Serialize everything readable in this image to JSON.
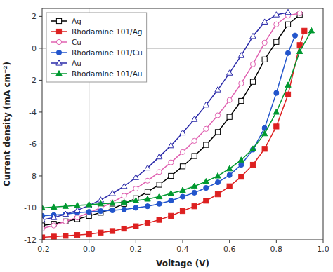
{
  "chart_data": {
    "type": "line",
    "xlabel": "Voltage (V)",
    "ylabel": "Current density (mA cm⁻²)",
    "xlim": [
      -0.2,
      1.0
    ],
    "ylim": [
      -12,
      2.5
    ],
    "xticks": [
      -0.2,
      {
        "value": 0.0,
        "label": "0.0"
      },
      0.2,
      0.4,
      0.6,
      0.8,
      {
        "value": 1.0,
        "label": "1.0"
      }
    ],
    "yticks": [
      -12,
      -10,
      -8,
      -6,
      -4,
      -2,
      0,
      2
    ],
    "grid": false,
    "legend": "upper left",
    "series": [
      {
        "name": "Ag",
        "color": "#000000",
        "marker": "square-open",
        "x": [
          -0.2,
          -0.15,
          -0.1,
          -0.05,
          0.0,
          0.05,
          0.1,
          0.15,
          0.2,
          0.25,
          0.3,
          0.35,
          0.4,
          0.45,
          0.5,
          0.55,
          0.6,
          0.65,
          0.7,
          0.75,
          0.8,
          0.85,
          0.9
        ],
        "values": [
          -11.1,
          -11.0,
          -10.85,
          -10.7,
          -10.5,
          -10.3,
          -10.05,
          -9.75,
          -9.4,
          -9.0,
          -8.55,
          -8.0,
          -7.4,
          -6.75,
          -6.05,
          -5.25,
          -4.3,
          -3.3,
          -2.1,
          -0.7,
          0.4,
          1.5,
          2.1
        ]
      },
      {
        "name": "Rhodamine 101/Ag",
        "color": "#dd2020",
        "marker": "square",
        "x": [
          -0.2,
          -0.15,
          -0.1,
          -0.05,
          0.0,
          0.05,
          0.1,
          0.15,
          0.2,
          0.25,
          0.3,
          0.35,
          0.4,
          0.45,
          0.5,
          0.55,
          0.6,
          0.65,
          0.7,
          0.75,
          0.8,
          0.85,
          0.9,
          0.92
        ],
        "values": [
          -11.85,
          -11.8,
          -11.75,
          -11.7,
          -11.65,
          -11.55,
          -11.45,
          -11.3,
          -11.15,
          -10.95,
          -10.75,
          -10.5,
          -10.2,
          -9.9,
          -9.55,
          -9.15,
          -8.65,
          -8.05,
          -7.3,
          -6.3,
          -4.9,
          -2.9,
          0.2,
          1.1
        ]
      },
      {
        "name": "Cu",
        "color": "#e060b0",
        "marker": "circle-open",
        "x": [
          -0.2,
          -0.15,
          -0.1,
          -0.05,
          0.0,
          0.05,
          0.1,
          0.15,
          0.2,
          0.25,
          0.3,
          0.35,
          0.4,
          0.45,
          0.5,
          0.55,
          0.6,
          0.65,
          0.7,
          0.75,
          0.8,
          0.85,
          0.9
        ],
        "values": [
          -11.3,
          -11.1,
          -10.85,
          -10.6,
          -10.3,
          -10.0,
          -9.65,
          -9.25,
          -8.8,
          -8.3,
          -7.75,
          -7.15,
          -6.5,
          -5.8,
          -5.05,
          -4.2,
          -3.25,
          -2.2,
          -1.0,
          0.35,
          1.5,
          2.05,
          2.2
        ]
      },
      {
        "name": "Rhodamine 101/Cu",
        "color": "#2255cc",
        "marker": "circle",
        "x": [
          -0.2,
          -0.15,
          -0.1,
          -0.05,
          0.0,
          0.05,
          0.1,
          0.15,
          0.2,
          0.25,
          0.3,
          0.35,
          0.4,
          0.45,
          0.5,
          0.55,
          0.6,
          0.65,
          0.7,
          0.75,
          0.8,
          0.85,
          0.88
        ],
        "values": [
          -10.5,
          -10.45,
          -10.4,
          -10.3,
          -10.25,
          -10.2,
          -10.15,
          -10.1,
          -10.0,
          -9.9,
          -9.75,
          -9.55,
          -9.3,
          -9.05,
          -8.75,
          -8.4,
          -7.95,
          -7.3,
          -6.35,
          -5.0,
          -2.8,
          -0.3,
          0.8
        ]
      },
      {
        "name": "Au",
        "color": "#2828a8",
        "marker": "triangle-open",
        "x": [
          -0.2,
          -0.15,
          -0.1,
          -0.05,
          0.0,
          0.05,
          0.1,
          0.15,
          0.2,
          0.25,
          0.3,
          0.35,
          0.4,
          0.45,
          0.5,
          0.55,
          0.6,
          0.65,
          0.7,
          0.75,
          0.8,
          0.85
        ],
        "values": [
          -10.75,
          -10.6,
          -10.4,
          -10.15,
          -9.85,
          -9.5,
          -9.1,
          -8.65,
          -8.1,
          -7.5,
          -6.8,
          -6.1,
          -5.3,
          -4.45,
          -3.55,
          -2.6,
          -1.55,
          -0.45,
          0.75,
          1.65,
          2.1,
          2.25
        ]
      },
      {
        "name": "Rhodamine 101/Au",
        "color": "#009930",
        "marker": "triangle",
        "x": [
          -0.2,
          -0.15,
          -0.1,
          -0.05,
          0.0,
          0.05,
          0.1,
          0.15,
          0.2,
          0.25,
          0.3,
          0.35,
          0.4,
          0.45,
          0.5,
          0.55,
          0.6,
          0.65,
          0.7,
          0.75,
          0.8,
          0.85,
          0.9,
          0.95
        ],
        "values": [
          -10.0,
          -9.95,
          -9.9,
          -9.85,
          -9.8,
          -9.75,
          -9.7,
          -9.65,
          -9.55,
          -9.45,
          -9.3,
          -9.1,
          -8.9,
          -8.65,
          -8.35,
          -8.0,
          -7.55,
          -7.0,
          -6.3,
          -5.35,
          -4.0,
          -2.3,
          -0.2,
          1.1
        ]
      }
    ]
  }
}
